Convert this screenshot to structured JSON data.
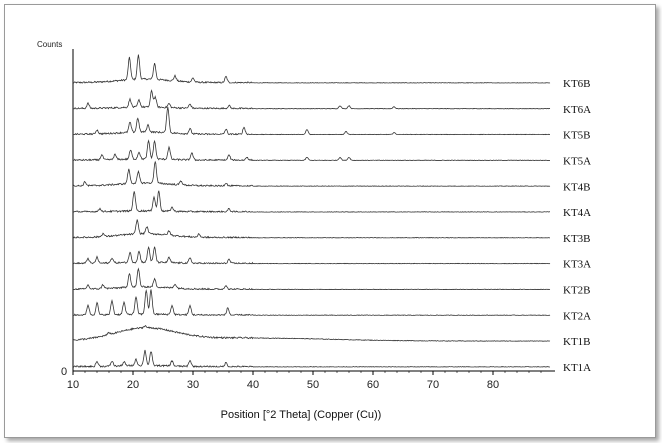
{
  "chart_data": {
    "type": "line",
    "title": "",
    "xlabel": "Position [°2 Theta] (Copper (Cu))",
    "ylabel": "Counts",
    "xlim": [
      10,
      90
    ],
    "x_ticks": [
      10,
      20,
      30,
      40,
      50,
      60,
      70,
      80
    ],
    "y_zero_label": "0",
    "grid": false,
    "series": [
      {
        "name": "KT6B",
        "broad": 0.12,
        "peaks": [
          [
            19.4,
            22
          ],
          [
            20.9,
            24
          ],
          [
            23.6,
            16
          ],
          [
            27,
            5
          ],
          [
            30,
            4
          ],
          [
            35.5,
            6
          ]
        ]
      },
      {
        "name": "KT6A",
        "broad": 0.05,
        "peaks": [
          [
            12.5,
            5
          ],
          [
            19.5,
            8
          ],
          [
            21,
            7
          ],
          [
            23.1,
            16
          ],
          [
            23.7,
            10
          ],
          [
            26,
            4
          ],
          [
            29.5,
            4
          ],
          [
            36,
            3
          ],
          [
            54.5,
            3
          ],
          [
            56,
            3
          ],
          [
            63.5,
            2
          ]
        ]
      },
      {
        "name": "KT5B",
        "broad": 0.08,
        "peaks": [
          [
            14,
            4
          ],
          [
            19.5,
            10
          ],
          [
            20.8,
            14
          ],
          [
            22.5,
            7
          ],
          [
            25.8,
            26
          ],
          [
            29.5,
            5
          ],
          [
            35.5,
            5
          ],
          [
            38.5,
            7
          ],
          [
            49,
            5
          ],
          [
            55.5,
            3
          ],
          [
            63.5,
            2
          ]
        ]
      },
      {
        "name": "KT5A",
        "broad": 0.04,
        "peaks": [
          [
            14.8,
            5
          ],
          [
            17,
            5
          ],
          [
            19.6,
            9
          ],
          [
            21,
            7
          ],
          [
            22.6,
            18
          ],
          [
            23.6,
            18
          ],
          [
            26,
            12
          ],
          [
            29.8,
            7
          ],
          [
            36,
            5
          ],
          [
            39,
            3
          ],
          [
            49,
            3
          ],
          [
            54.5,
            3
          ],
          [
            56,
            3
          ]
        ]
      },
      {
        "name": "KT4B",
        "broad": 0.1,
        "peaks": [
          [
            12,
            4
          ],
          [
            19.3,
            14
          ],
          [
            20.9,
            11
          ],
          [
            23.7,
            22
          ],
          [
            28,
            4
          ],
          [
            35.5,
            3
          ]
        ]
      },
      {
        "name": "KT4A",
        "broad": 0.03,
        "peaks": [
          [
            14.5,
            3
          ],
          [
            20.2,
            20
          ],
          [
            23.5,
            14
          ],
          [
            24.3,
            20
          ],
          [
            26.5,
            4
          ],
          [
            36,
            3
          ]
        ]
      },
      {
        "name": "KT3B",
        "broad": 0.13,
        "peaks": [
          [
            15,
            3
          ],
          [
            20.7,
            14
          ],
          [
            22.3,
            7
          ],
          [
            26,
            4
          ],
          [
            31,
            3
          ]
        ]
      },
      {
        "name": "KT3A",
        "broad": 0.04,
        "peaks": [
          [
            12.5,
            5
          ],
          [
            14,
            6
          ],
          [
            16.5,
            5
          ],
          [
            19.5,
            10
          ],
          [
            21,
            11
          ],
          [
            22.6,
            15
          ],
          [
            23.6,
            15
          ],
          [
            26,
            5
          ],
          [
            29.5,
            5
          ],
          [
            36,
            4
          ]
        ]
      },
      {
        "name": "KT2B",
        "broad": 0.08,
        "peaks": [
          [
            12.5,
            4
          ],
          [
            15,
            4
          ],
          [
            19.4,
            14
          ],
          [
            20.9,
            18
          ],
          [
            23.6,
            8
          ],
          [
            27,
            4
          ],
          [
            35.5,
            4
          ]
        ]
      },
      {
        "name": "KT2A",
        "broad": 0.03,
        "peaks": [
          [
            12.5,
            10
          ],
          [
            14,
            12
          ],
          [
            16.5,
            14
          ],
          [
            18.5,
            12
          ],
          [
            20.5,
            17
          ],
          [
            22.2,
            24
          ],
          [
            23,
            24
          ],
          [
            26.5,
            9
          ],
          [
            29.5,
            9
          ],
          [
            35.8,
            7
          ]
        ]
      },
      {
        "name": "KT1B",
        "broad": 0.95,
        "peaks": [
          [
            16,
            2
          ],
          [
            22,
            2
          ]
        ]
      },
      {
        "name": "KT1A",
        "broad": 0.04,
        "peaks": [
          [
            14,
            5
          ],
          [
            16.5,
            5
          ],
          [
            18.5,
            4
          ],
          [
            20.5,
            6
          ],
          [
            22,
            15
          ],
          [
            23,
            14
          ],
          [
            26.5,
            5
          ],
          [
            29.5,
            6
          ],
          [
            35.5,
            4
          ]
        ]
      }
    ]
  }
}
